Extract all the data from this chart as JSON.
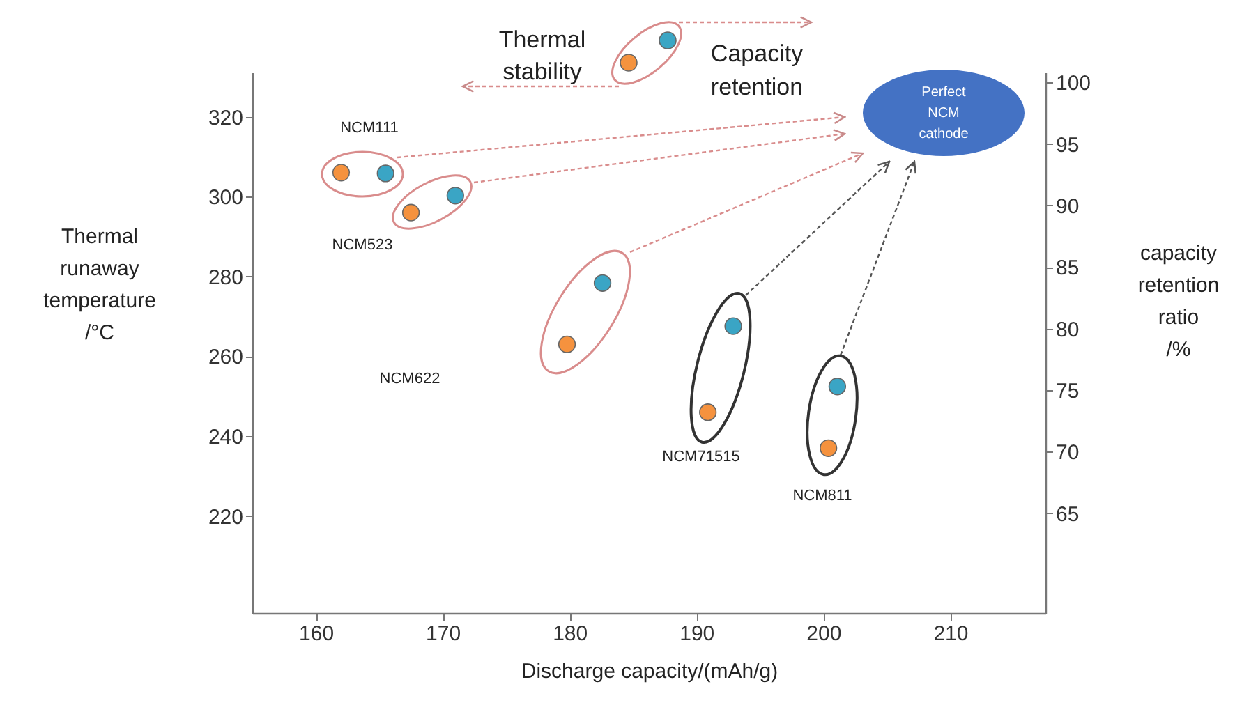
{
  "chart_data": {
    "type": "scatter",
    "xlabel": "Discharge capacity/(mAh/g)",
    "ylabel": "Thermal runaway temperature /°C",
    "y2label": "capacity retention ratio /%",
    "xlim": [
      155,
      217.5
    ],
    "xticks": [
      160,
      170,
      180,
      190,
      200,
      210
    ],
    "ylim": [
      195.7,
      331.1
    ],
    "yticks": [
      220,
      240,
      260,
      280,
      300,
      320
    ],
    "y2lim": [
      56.9,
      100.8
    ],
    "y2ticks": [
      65,
      70,
      75,
      80,
      85,
      90,
      95,
      100
    ],
    "marker": "circle",
    "grid": false,
    "series": [
      {
        "color": "#f5923e",
        "axis": "y",
        "x": [
          162.0,
          167.5,
          179.8,
          190.9,
          200.4
        ],
        "values": [
          306,
          296,
          263,
          246,
          237
        ]
      },
      {
        "color": "#3aa5c5",
        "axis": "y2",
        "x": [
          165.5,
          171.0,
          182.6,
          192.9,
          201.1
        ],
        "values": [
          92.6,
          90.8,
          83.7,
          80.2,
          75.3
        ]
      }
    ],
    "annotations": [
      "Thermal stability",
      "Capacity retention",
      "Perfect NCM cathode",
      "NCM111",
      "NCM523",
      "NCM622",
      "NCM71515",
      "NCM811"
    ]
  }
}
